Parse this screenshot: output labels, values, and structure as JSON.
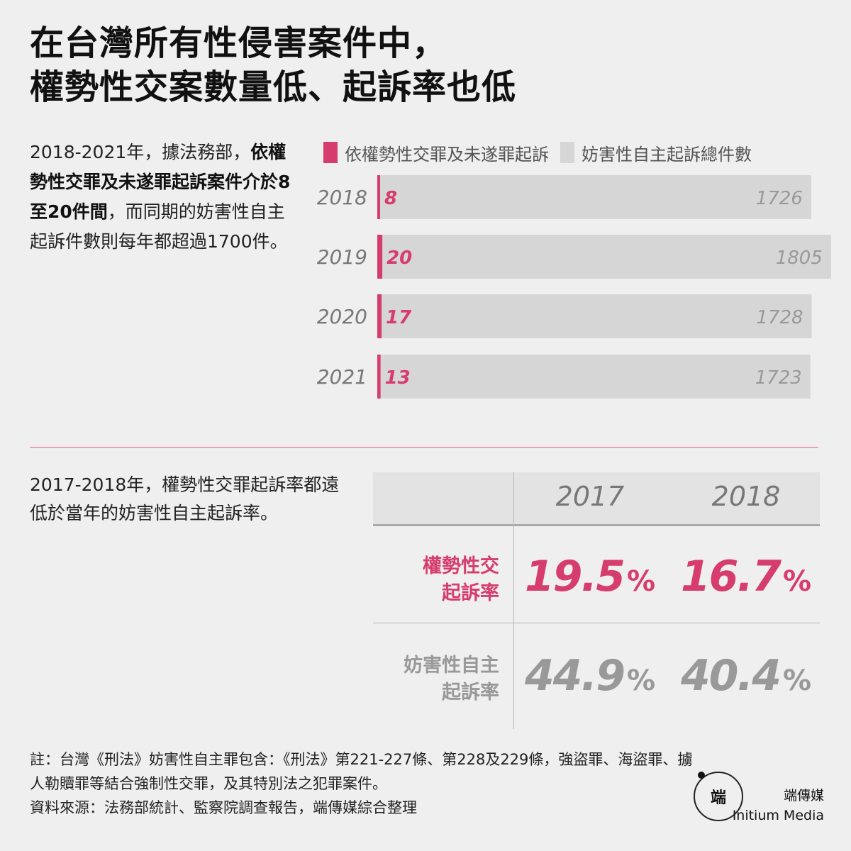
{
  "title": {
    "line1": "在台灣所有性侵害案件中，",
    "line2": "權勢性交案數量低、起訴率也低"
  },
  "intro": {
    "part1": "2018-2021年，據法務部，",
    "bold": "依權勢性交罪及未遂罪起訴案件介於8至20件間",
    "part2": "，而同期的妨害性自主起訴件數則每年都超過1700件。"
  },
  "legend": {
    "pink_label": "依權勢性交罪及未遂罪起訴",
    "gray_label": "妨害性自主起訴總件數"
  },
  "colors": {
    "pink": "#d63d6e",
    "gray_bar": "#d6d6d6",
    "gray_text": "#999999",
    "year_text": "#777777"
  },
  "chart_data": {
    "type": "bar",
    "orientation": "horizontal",
    "categories": [
      "2018",
      "2019",
      "2020",
      "2021"
    ],
    "series": [
      {
        "name": "依權勢性交罪及未遂罪起訴",
        "values": [
          8,
          20,
          17,
          13
        ]
      },
      {
        "name": "妨害性自主起訴總件數",
        "values": [
          1726,
          1805,
          1728,
          1723
        ]
      }
    ],
    "legend_position": "top",
    "grid": false
  },
  "section2_text": "2017-2018年，權勢性交罪起訴率都遠低於當年的妨害性自主起訴率。",
  "rate_table": {
    "years": [
      "2017",
      "2018"
    ],
    "rows": [
      {
        "label_line1": "權勢性交",
        "label_line2": "起訴率",
        "values": [
          "19.5",
          "16.7"
        ],
        "unit": "%"
      },
      {
        "label_line1": "妨害性自主",
        "label_line2": "起訴率",
        "values": [
          "44.9",
          "40.4"
        ],
        "unit": "%"
      }
    ]
  },
  "notes": {
    "note": "註：台灣《刑法》妨害性自主罪包含：《刑法》第221-227條、第228及229條，強盜罪、海盜罪、擄人勒贖罪等結合強制性交罪，及其特別法之犯罪案件。",
    "source": "資料來源：法務部統計、監察院調查報告，端傳媒綜合整理"
  },
  "brand": {
    "logo_glyph": "端",
    "name_zh": "端傳媒",
    "name_en": "Initium Media"
  }
}
